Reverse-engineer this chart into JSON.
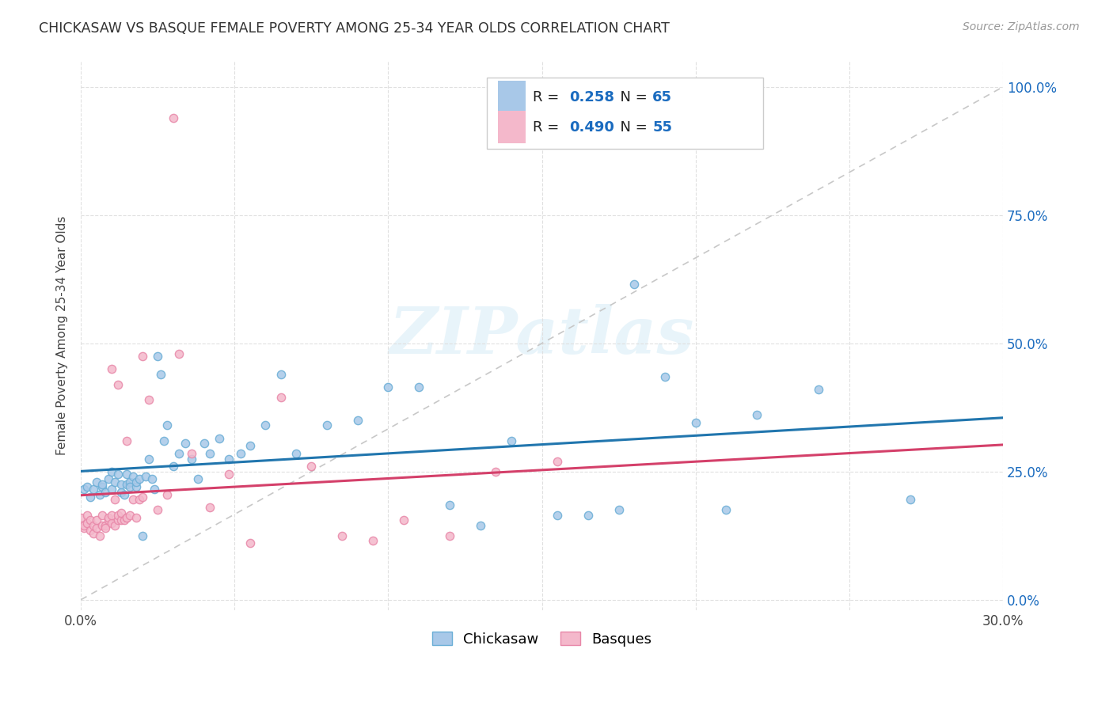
{
  "title": "CHICKASAW VS BASQUE FEMALE POVERTY AMONG 25-34 YEAR OLDS CORRELATION CHART",
  "source": "Source: ZipAtlas.com",
  "ylabel": "Female Poverty Among 25-34 Year Olds",
  "xlim": [
    0.0,
    0.3
  ],
  "ylim": [
    -0.02,
    1.05
  ],
  "xticks": [
    0.0,
    0.05,
    0.1,
    0.15,
    0.2,
    0.25,
    0.3
  ],
  "yticks_right": [
    0.0,
    0.25,
    0.5,
    0.75,
    1.0
  ],
  "yticklabels_right": [
    "0.0%",
    "25.0%",
    "50.0%",
    "75.0%",
    "100.0%"
  ],
  "chickasaw_color": "#a8c8e8",
  "basque_color": "#f4b8cb",
  "chickasaw_edge_color": "#6aaed6",
  "basque_edge_color": "#e887a8",
  "chickasaw_line_color": "#2176ae",
  "basque_line_color": "#d4406a",
  "diagonal_color": "#c8c8c8",
  "R_chickasaw": 0.258,
  "N_chickasaw": 65,
  "R_basque": 0.49,
  "N_basque": 55,
  "watermark": "ZIPatlas",
  "legend_labels": [
    "Chickasaw",
    "Basques"
  ],
  "legend_R_color": "#1a6bbf",
  "legend_N_color": "#1a6bbf",
  "legend_text_color": "#222222",
  "chickasaw_x": [
    0.001,
    0.002,
    0.003,
    0.004,
    0.005,
    0.006,
    0.007,
    0.007,
    0.008,
    0.009,
    0.01,
    0.01,
    0.011,
    0.012,
    0.013,
    0.013,
    0.014,
    0.015,
    0.015,
    0.016,
    0.016,
    0.017,
    0.018,
    0.018,
    0.019,
    0.02,
    0.021,
    0.022,
    0.023,
    0.024,
    0.025,
    0.026,
    0.027,
    0.028,
    0.03,
    0.032,
    0.034,
    0.036,
    0.038,
    0.04,
    0.042,
    0.045,
    0.048,
    0.052,
    0.055,
    0.06,
    0.065,
    0.07,
    0.08,
    0.09,
    0.1,
    0.11,
    0.12,
    0.13,
    0.14,
    0.155,
    0.165,
    0.175,
    0.18,
    0.19,
    0.2,
    0.21,
    0.22,
    0.24,
    0.27
  ],
  "chickasaw_y": [
    0.215,
    0.22,
    0.2,
    0.215,
    0.23,
    0.205,
    0.22,
    0.225,
    0.21,
    0.235,
    0.215,
    0.25,
    0.23,
    0.245,
    0.21,
    0.225,
    0.205,
    0.225,
    0.245,
    0.23,
    0.22,
    0.24,
    0.22,
    0.23,
    0.235,
    0.125,
    0.24,
    0.275,
    0.235,
    0.215,
    0.475,
    0.44,
    0.31,
    0.34,
    0.26,
    0.285,
    0.305,
    0.275,
    0.235,
    0.305,
    0.285,
    0.315,
    0.275,
    0.285,
    0.3,
    0.34,
    0.44,
    0.285,
    0.34,
    0.35,
    0.415,
    0.415,
    0.185,
    0.145,
    0.31,
    0.165,
    0.165,
    0.175,
    0.615,
    0.435,
    0.345,
    0.175,
    0.36,
    0.41,
    0.195
  ],
  "basque_x": [
    0.0,
    0.001,
    0.001,
    0.002,
    0.002,
    0.003,
    0.003,
    0.004,
    0.004,
    0.005,
    0.005,
    0.006,
    0.007,
    0.007,
    0.008,
    0.008,
    0.009,
    0.009,
    0.01,
    0.01,
    0.011,
    0.011,
    0.012,
    0.012,
    0.013,
    0.013,
    0.014,
    0.015,
    0.015,
    0.016,
    0.017,
    0.018,
    0.019,
    0.02,
    0.022,
    0.025,
    0.028,
    0.032,
    0.036,
    0.042,
    0.048,
    0.055,
    0.065,
    0.075,
    0.085,
    0.095,
    0.105,
    0.12,
    0.135,
    0.155,
    0.01,
    0.012,
    0.015,
    0.02,
    0.03
  ],
  "basque_y": [
    0.16,
    0.14,
    0.145,
    0.165,
    0.15,
    0.135,
    0.155,
    0.13,
    0.145,
    0.14,
    0.155,
    0.125,
    0.165,
    0.145,
    0.145,
    0.14,
    0.155,
    0.16,
    0.15,
    0.165,
    0.145,
    0.195,
    0.155,
    0.165,
    0.155,
    0.17,
    0.155,
    0.16,
    0.16,
    0.165,
    0.195,
    0.16,
    0.195,
    0.2,
    0.39,
    0.175,
    0.205,
    0.48,
    0.285,
    0.18,
    0.245,
    0.11,
    0.395,
    0.26,
    0.125,
    0.115,
    0.155,
    0.125,
    0.25,
    0.27,
    0.45,
    0.42,
    0.31,
    0.475,
    0.94
  ]
}
